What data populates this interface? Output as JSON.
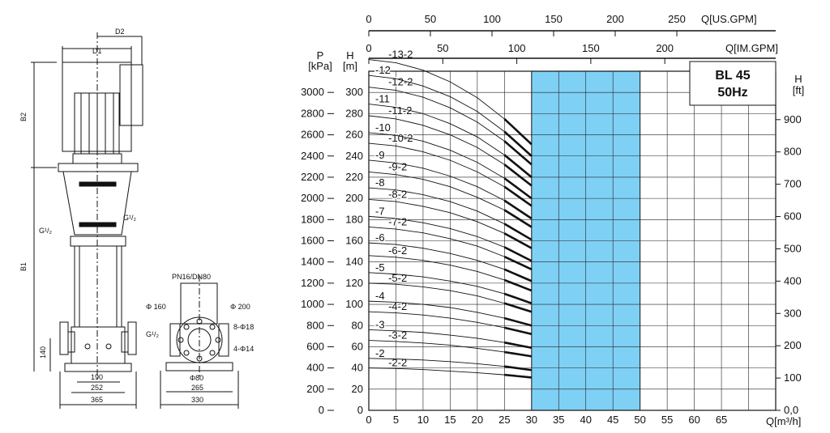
{
  "drawing": {
    "labels": {
      "d1": "D1",
      "d2": "D2",
      "b1": "B1",
      "b2": "B2",
      "thread_left": "G¹/₂",
      "thread_right": "G¹/₂",
      "thread_flange": "G¹/₂",
      "h140": "140",
      "w190": "190",
      "w252": "252",
      "w365": "365",
      "pn": "PN16/DN80",
      "phi160": "Φ 160",
      "phi200": "Φ 200",
      "holes18": "8-Φ18",
      "holes14": "4-Φ14",
      "phi80": "Φ80",
      "w265": "265",
      "w330": "330"
    }
  },
  "chart_data": {
    "type": "line",
    "title": "BL 45",
    "subtitle": "50Hz",
    "x_axis": {
      "label": "Q[m³/h]",
      "min": 0,
      "max": 75,
      "ticks": [
        0,
        5,
        10,
        15,
        20,
        25,
        30,
        35,
        40,
        45,
        50,
        55,
        60,
        65
      ]
    },
    "x_axis_usgpm": {
      "label": "Q[US.GPM]",
      "ticks": [
        0,
        50,
        100,
        150,
        200,
        250
      ]
    },
    "x_axis_imgpm": {
      "label": "Q[IM.GPM]",
      "ticks": [
        0,
        50,
        100,
        150,
        200
      ]
    },
    "y_axis_kpa": {
      "label": "P",
      "unit": "[kPa]",
      "min": 0,
      "max": 3200,
      "ticks": [
        0,
        200,
        400,
        600,
        800,
        1000,
        1200,
        1400,
        1600,
        1800,
        2000,
        2200,
        2400,
        2600,
        2800,
        3000
      ]
    },
    "y_axis_m": {
      "label": "H",
      "unit": "[m]",
      "ticks": [
        0,
        20,
        40,
        60,
        80,
        100,
        120,
        140,
        160,
        180,
        200,
        220,
        240,
        260,
        280,
        300
      ]
    },
    "y_axis_ft": {
      "label": "H",
      "unit": "[ft]",
      "ticks": [
        "0,0",
        100,
        200,
        300,
        400,
        500,
        600,
        700,
        800,
        900
      ]
    },
    "recommended_range": {
      "q_min": 30,
      "q_max": 50
    },
    "series": [
      {
        "name": "-2-2",
        "h": [
          40,
          39.5,
          38.5,
          37,
          35.5,
          33.5,
          31
        ]
      },
      {
        "name": "-2",
        "h": [
          49,
          48.5,
          47.5,
          46,
          44,
          41.5,
          38
        ]
      },
      {
        "name": "-3-2",
        "h": [
          66,
          65,
          63.5,
          61.5,
          58.5,
          55,
          51
        ]
      },
      {
        "name": "-3",
        "h": [
          76,
          75,
          73.5,
          71,
          68,
          64,
          59
        ]
      },
      {
        "name": "-4-2",
        "h": [
          93,
          92,
          90,
          87,
          83,
          78,
          72
        ]
      },
      {
        "name": "-4",
        "h": [
          103,
          102,
          100,
          97,
          92.5,
          87,
          80
        ]
      },
      {
        "name": "-5-2",
        "h": [
          120,
          119,
          116.5,
          113,
          108,
          101,
          93
        ]
      },
      {
        "name": "-5",
        "h": [
          130,
          128.5,
          126,
          122,
          117,
          110,
          101
        ]
      },
      {
        "name": "-6-2",
        "h": [
          146,
          144.5,
          141.5,
          137,
          131,
          123,
          113
        ]
      },
      {
        "name": "-6",
        "h": [
          158,
          156.5,
          153,
          148,
          141.5,
          133,
          122
        ]
      },
      {
        "name": "-7-2",
        "h": [
          173,
          171,
          167.5,
          162,
          155,
          145,
          133
        ]
      },
      {
        "name": "-7",
        "h": [
          183,
          181,
          177,
          171.5,
          164,
          154,
          141
        ]
      },
      {
        "name": "-8-2",
        "h": [
          199,
          197,
          192.5,
          186.5,
          178,
          167,
          153
        ]
      },
      {
        "name": "-8",
        "h": [
          210,
          208,
          203.5,
          197,
          188,
          176,
          161
        ]
      },
      {
        "name": "-9-2",
        "h": [
          225,
          222.5,
          218,
          211,
          201,
          189,
          173
        ]
      },
      {
        "name": "-9",
        "h": [
          236,
          233.5,
          228.5,
          221,
          211,
          198,
          181
        ]
      },
      {
        "name": "-10-2",
        "h": [
          252,
          249.5,
          244,
          236,
          225,
          211,
          193
        ]
      },
      {
        "name": "-10",
        "h": [
          262,
          259.5,
          254,
          245.5,
          234,
          219,
          200
        ]
      },
      {
        "name": "-11-2",
        "h": [
          278,
          275,
          269,
          260,
          248,
          232,
          212
        ]
      },
      {
        "name": "-11",
        "h": [
          289,
          286,
          280,
          270.5,
          258,
          241,
          220
        ]
      },
      {
        "name": "-12-2",
        "h": [
          305,
          302,
          295.5,
          285.5,
          272,
          254,
          232
        ]
      },
      {
        "name": "-12",
        "h": [
          316,
          313,
          306,
          296,
          282,
          263,
          240
        ]
      },
      {
        "name": "-13-2",
        "h": [
          331,
          328,
          321,
          310,
          295,
          275,
          251
        ]
      }
    ],
    "curve_q": [
      0,
      5,
      10,
      15,
      20,
      25,
      30
    ]
  }
}
